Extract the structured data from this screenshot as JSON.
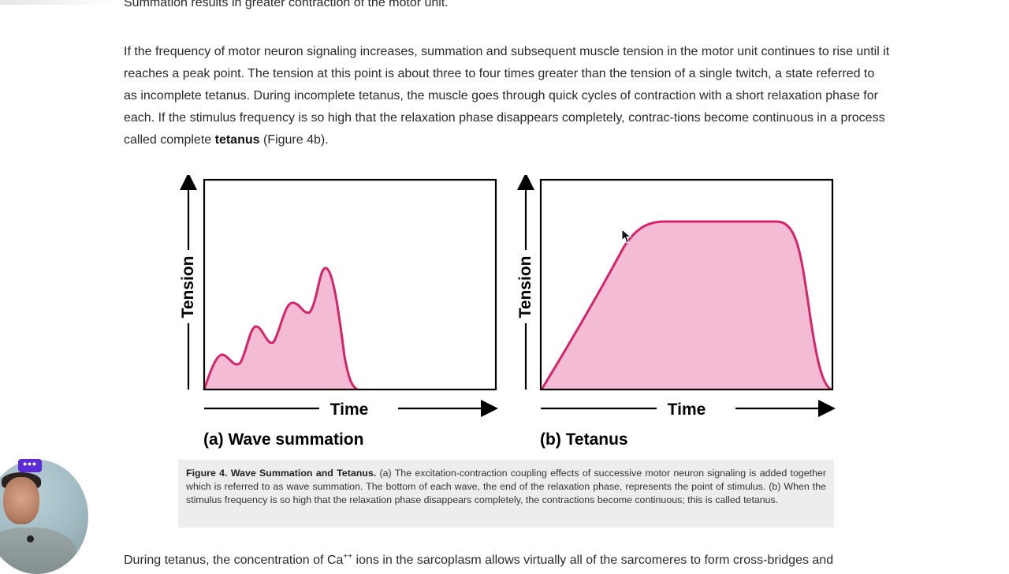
{
  "top_text": "Summation results in greater contraction of the motor unit.",
  "paragraph1": {
    "text_before_bold": "If the frequency of motor neuron signaling increases, summation and subsequent muscle tension in the motor unit continues to rise until it reaches a peak point. The tension at this point is about three to four times greater than the tension of a single twitch, a state referred to as incomplete tetanus. During incomplete tetanus, the muscle goes through quick cycles of contraction with a short relaxation phase for each. If the stimulus frequency is so high that the relaxation phase disappears completely, contrac-tions become continuous in a process called complete ",
    "bold": "tetanus",
    "text_after_bold": " (Figure 4b)."
  },
  "figure": {
    "panel_a": {
      "y_label": "Tension",
      "x_label": "Time",
      "title": "(a) Wave summation"
    },
    "panel_b": {
      "y_label": "Tension",
      "x_label": "Time",
      "title": "(b) Tetanus"
    },
    "curve_color": "#d6246b",
    "fill_color": "#f4bcd4"
  },
  "caption": {
    "title": "Figure 4. Wave Summation and Tetanus.",
    "body": " (a) The excitation-contraction coupling effects of successive motor neuron signaling is added together which is referred to as wave summation. The bottom of each wave, the end of the relaxation phase, represents the point of stimulus. (b) When the stimulus frequency is so high that the relaxation phase disappears completely, the contractions become continuous; this is called tetanus."
  },
  "paragraph2": {
    "before": "During tetanus, the concentration of Ca",
    "sup": "++",
    "after": " ions in the sarcoplasm allows virtually all of the sarcomeres to form cross-bridges and"
  },
  "webcam": {
    "menu_label": "•••"
  }
}
